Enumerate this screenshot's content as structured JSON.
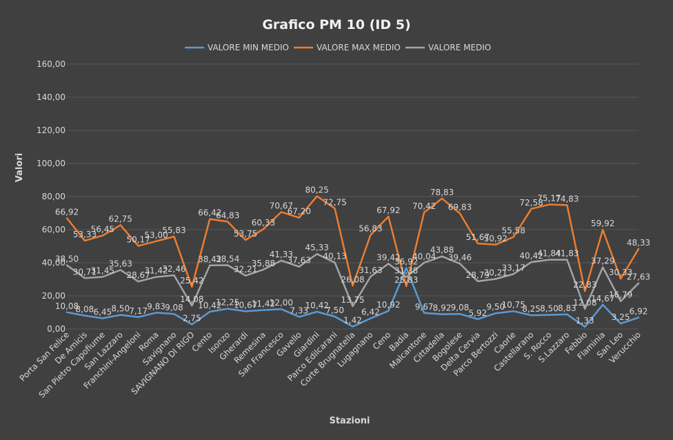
{
  "chart_data": {
    "type": "line",
    "title": "Grafico PM 10 (ID 5)",
    "xlabel": "Stazioni",
    "ylabel": "Valori",
    "ylim": [
      0,
      160
    ],
    "yticks": [
      "0,00",
      "20,00",
      "40,00",
      "60,00",
      "80,00",
      "100,00",
      "120,00",
      "140,00",
      "160,00"
    ],
    "grid": true,
    "legend_position": "top",
    "categories": [
      "Porta San Felice",
      "De Amicis",
      "San Pietro Capofiume",
      "San Lazzaro",
      "Franchini-Angeloni",
      "Roma",
      "Savignano",
      "SAVIGNANO DI RIGO",
      "Cento",
      "Isonzo",
      "Gherardi",
      "Remesina",
      "San Francesco",
      "Gavello",
      "Giardini",
      "Parco Edilcarani",
      "Corte Brugnatella",
      "Lugagnano",
      "Ceno",
      "Badia",
      "Malcantone",
      "Cittadella",
      "Bogolese",
      "Delta Cervia",
      "Parco Bertozzi",
      "Caorle",
      "Castellarano",
      "S. Rocco",
      "S.Lazzaro",
      "Febbio",
      "Flaminia",
      "San Leo",
      "Verucchio"
    ],
    "series": [
      {
        "name": "VALORE MIN MEDIO",
        "color": "#5b9bd5",
        "values": [
          10.08,
          8.08,
          6.45,
          8.5,
          7.17,
          9.83,
          9.08,
          2.75,
          10.42,
          12.25,
          10.67,
          11.42,
          12.0,
          7.33,
          10.42,
          7.5,
          1.42,
          6.42,
          10.92,
          36.92,
          9.67,
          8.92,
          9.08,
          5.92,
          9.5,
          10.75,
          8.25,
          8.5,
          8.83,
          1.33,
          14.67,
          3.25,
          6.92
        ],
        "labels": [
          "10,08",
          "8,08",
          "6,45",
          "8,50",
          "7,17",
          "9,83",
          "9,08",
          "2,75",
          "10,42",
          "12,25",
          "10,67",
          "11,42",
          "12,00",
          "7,33",
          "10,42",
          "7,50",
          "1,42",
          "6,42",
          "10,92",
          "36,92",
          "9,67",
          "8,92",
          "9,08",
          "5,92",
          "9,50",
          "10,75",
          "8,25",
          "8,50",
          "8,83",
          "1,33",
          "14,67",
          "3,25",
          "6,92"
        ]
      },
      {
        "name": "VALORE MAX MEDIO",
        "color": "#ed7d31",
        "values": [
          66.92,
          53.33,
          56.45,
          62.75,
          50.17,
          53.0,
          55.83,
          25.42,
          66.42,
          64.83,
          53.75,
          60.33,
          70.67,
          67.2,
          80.25,
          72.75,
          26.08,
          56.83,
          67.92,
          25.83,
          70.42,
          78.83,
          69.83,
          51.67,
          50.92,
          55.58,
          72.58,
          75.17,
          74.83,
          22.83,
          59.92,
          30.33,
          48.33
        ],
        "labels": [
          "66,92",
          "53,33",
          "56,45",
          "62,75",
          "50,17",
          "53,00",
          "55,83",
          "25,42",
          "66,42",
          "64,83",
          "53,75",
          "60,33",
          "70,67",
          "67,20",
          "80,25",
          "72,75",
          "26,08",
          "56,83",
          "67,92",
          "25,83",
          "70,42",
          "78,83",
          "69,83",
          "51,67",
          "50,92",
          "55,58",
          "72,58",
          "75,17",
          "74,83",
          "22,83",
          "59,92",
          "30,33",
          "48,33"
        ]
      },
      {
        "name": "VALORE MEDIO",
        "color": "#a5a5a5",
        "values": [
          38.5,
          30.71,
          31.45,
          35.63,
          28.67,
          31.42,
          32.46,
          14.08,
          38.42,
          38.54,
          32.21,
          35.88,
          41.33,
          37.63,
          45.33,
          40.13,
          13.75,
          31.63,
          39.42,
          31.38,
          40.04,
          43.88,
          39.46,
          28.79,
          30.21,
          33.17,
          40.42,
          41.84,
          41.83,
          12.08,
          37.29,
          16.79,
          27.63
        ],
        "labels": [
          "38,50",
          "30,71",
          "31,45",
          "35,63",
          "28,67",
          "31,42",
          "32,46",
          "14,08",
          "38,42",
          "38,54",
          "32,21",
          "35,88",
          "41,33",
          "37,63",
          "45,33",
          "40,13",
          "13,75",
          "31,63",
          "39,42",
          "31,38",
          "40,04",
          "43,88",
          "39,46",
          "28,79",
          "30,21",
          "33,17",
          "40,42",
          "41,84",
          "41,83",
          "12,08",
          "37,29",
          "16,79",
          "27,63"
        ]
      }
    ]
  }
}
